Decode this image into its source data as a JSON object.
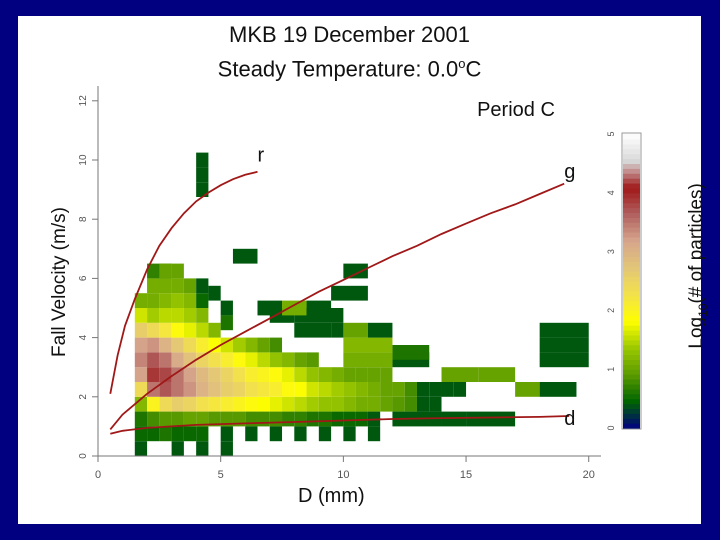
{
  "slide": {
    "title_line1": "MKB 19 December 2001",
    "title_line2_prefix": "Steady Temperature:  0.0",
    "title_line2_sup": "o",
    "title_line2_suffix": "C"
  },
  "chart_data": {
    "type": "heatmap",
    "panel_label": "Period C",
    "xlabel": "D (mm)",
    "ylabel": "Fall Velocity (m/s)",
    "colorbar_label_prefix": "Log",
    "colorbar_label_sub": "10",
    "colorbar_label_suffix": "(# of particles)",
    "xlim": [
      0,
      20.5
    ],
    "ylim": [
      0,
      12.5
    ],
    "x_ticks": [
      0,
      5,
      10,
      15,
      20
    ],
    "y_ticks": [
      0,
      2,
      4,
      6,
      8,
      10,
      12
    ],
    "colorbar_ticks": [
      0,
      1,
      2,
      3,
      4,
      5
    ],
    "colorbar_range": [
      0,
      5
    ],
    "colorbar_colors": [
      "#000080",
      "#006400",
      "#5a9a00",
      "#9bc800",
      "#ffff00",
      "#f3e24a",
      "#e3c678",
      "#d6a68c",
      "#b06060",
      "#a01818",
      "#d8d8d8",
      "#ffffff"
    ],
    "cells": [
      [
        1.5,
        1.75,
        0.5,
        1.2
      ],
      [
        1.5,
        2.25,
        0.5,
        2.4
      ],
      [
        1.5,
        2.75,
        0.5,
        3.2
      ],
      [
        1.5,
        3.25,
        0.5,
        3.4
      ],
      [
        1.5,
        3.75,
        0.5,
        3.2
      ],
      [
        1.5,
        4.25,
        0.5,
        2.6
      ],
      [
        1.5,
        4.75,
        0.5,
        1.6
      ],
      [
        1.5,
        5.25,
        0.5,
        1.1
      ],
      [
        2.0,
        1.75,
        0.5,
        2.0
      ],
      [
        2.0,
        2.25,
        0.5,
        3.5
      ],
      [
        2.0,
        2.75,
        0.5,
        3.9
      ],
      [
        2.0,
        3.25,
        0.5,
        3.7
      ],
      [
        2.0,
        3.75,
        0.5,
        3.3
      ],
      [
        2.0,
        4.25,
        0.5,
        2.4
      ],
      [
        2.0,
        4.75,
        0.5,
        1.4
      ],
      [
        2.0,
        5.25,
        0.5,
        1.1
      ],
      [
        2.5,
        1.75,
        0.5,
        2.4
      ],
      [
        2.5,
        2.25,
        0.5,
        3.7
      ],
      [
        2.5,
        2.75,
        0.5,
        3.8
      ],
      [
        2.5,
        3.25,
        0.5,
        3.5
      ],
      [
        2.5,
        3.75,
        0.5,
        3.0
      ],
      [
        2.5,
        4.25,
        0.5,
        2.2
      ],
      [
        2.5,
        4.75,
        0.5,
        1.5
      ],
      [
        2.5,
        5.25,
        0.5,
        1.2
      ],
      [
        3.0,
        1.75,
        0.5,
        2.6
      ],
      [
        3.0,
        2.25,
        0.5,
        3.5
      ],
      [
        3.0,
        2.75,
        0.5,
        3.5
      ],
      [
        3.0,
        3.25,
        0.5,
        3.1
      ],
      [
        3.0,
        3.75,
        0.5,
        2.7
      ],
      [
        3.0,
        4.25,
        0.5,
        1.9
      ],
      [
        3.0,
        4.75,
        0.5,
        1.5
      ],
      [
        3.0,
        5.25,
        0.5,
        1.3
      ],
      [
        3.0,
        5.75,
        0.5,
        1.1
      ],
      [
        3.5,
        1.75,
        0.5,
        2.5
      ],
      [
        3.5,
        2.25,
        0.5,
        3.3
      ],
      [
        3.5,
        2.75,
        0.5,
        3.2
      ],
      [
        3.5,
        3.25,
        0.5,
        2.8
      ],
      [
        3.5,
        3.75,
        0.5,
        2.4
      ],
      [
        3.5,
        4.25,
        0.5,
        1.7
      ],
      [
        3.5,
        4.75,
        0.5,
        1.4
      ],
      [
        3.5,
        5.25,
        0.5,
        1.2
      ],
      [
        3.5,
        5.75,
        0.5,
        1.0
      ],
      [
        4.0,
        1.75,
        0.5,
        2.3
      ],
      [
        4.0,
        2.25,
        0.5,
        3.0
      ],
      [
        4.0,
        2.75,
        0.5,
        2.9
      ],
      [
        4.0,
        3.25,
        0.5,
        2.5
      ],
      [
        4.0,
        3.75,
        0.5,
        2.1
      ],
      [
        4.0,
        4.25,
        0.5,
        1.5
      ],
      [
        4.0,
        4.75,
        0.5,
        1.2
      ],
      [
        4.0,
        5.25,
        0.5,
        0.5
      ],
      [
        4.0,
        5.75,
        0.5,
        0.4
      ],
      [
        4.5,
        1.75,
        0.5,
        2.2
      ],
      [
        4.5,
        2.25,
        0.5,
        2.8
      ],
      [
        4.5,
        2.75,
        0.5,
        2.7
      ],
      [
        4.5,
        3.25,
        0.5,
        2.3
      ],
      [
        4.5,
        3.75,
        0.5,
        1.8
      ],
      [
        4.5,
        4.25,
        0.5,
        1.2
      ],
      [
        5.0,
        1.75,
        0.5,
        2.1
      ],
      [
        5.0,
        2.25,
        0.5,
        2.6
      ],
      [
        5.0,
        2.75,
        0.5,
        2.5
      ],
      [
        5.0,
        3.25,
        0.5,
        2.1
      ],
      [
        5.0,
        3.75,
        0.5,
        1.6
      ],
      [
        5.5,
        1.75,
        0.5,
        2.0
      ],
      [
        5.5,
        2.25,
        0.5,
        2.5
      ],
      [
        5.5,
        2.75,
        0.5,
        2.3
      ],
      [
        5.5,
        3.25,
        0.5,
        1.9
      ],
      [
        5.5,
        3.75,
        0.5,
        1.4
      ],
      [
        6.0,
        1.75,
        0.5,
        1.9
      ],
      [
        6.0,
        2.25,
        0.5,
        2.3
      ],
      [
        6.0,
        2.75,
        0.5,
        2.1
      ],
      [
        6.0,
        3.25,
        0.5,
        1.7
      ],
      [
        6.0,
        3.75,
        0.5,
        1.2
      ],
      [
        6.5,
        1.75,
        0.5,
        1.8
      ],
      [
        6.5,
        2.25,
        0.5,
        2.2
      ],
      [
        6.5,
        2.75,
        0.5,
        2.0
      ],
      [
        6.5,
        3.25,
        0.5,
        1.5
      ],
      [
        6.5,
        3.75,
        0.5,
        1.0
      ],
      [
        7.0,
        1.75,
        0.5,
        1.7
      ],
      [
        7.0,
        2.25,
        0.5,
        2.1
      ],
      [
        7.0,
        2.75,
        0.5,
        1.9
      ],
      [
        7.0,
        3.25,
        0.5,
        1.3
      ],
      [
        7.0,
        3.75,
        0.5,
        0.8
      ],
      [
        7.5,
        1.75,
        0.5,
        1.6
      ],
      [
        7.5,
        2.25,
        0.5,
        1.9
      ],
      [
        7.5,
        2.75,
        0.5,
        1.7
      ],
      [
        7.5,
        3.25,
        0.5,
        1.2
      ],
      [
        8.0,
        1.75,
        0.5,
        1.5
      ],
      [
        8.0,
        2.25,
        0.5,
        1.8
      ],
      [
        8.0,
        2.75,
        0.5,
        1.5
      ],
      [
        8.0,
        3.25,
        0.5,
        1.0
      ],
      [
        8.5,
        1.75,
        0.5,
        1.4
      ],
      [
        8.5,
        2.25,
        0.5,
        1.6
      ],
      [
        8.5,
        2.75,
        0.5,
        1.3
      ],
      [
        8.5,
        3.25,
        0.5,
        0.9
      ],
      [
        9.0,
        1.75,
        0.5,
        1.3
      ],
      [
        9.0,
        2.25,
        0.5,
        1.5
      ],
      [
        9.0,
        2.75,
        0.5,
        1.2
      ],
      [
        9.5,
        1.75,
        0.5,
        1.3
      ],
      [
        9.5,
        2.25,
        0.5,
        1.4
      ],
      [
        9.5,
        2.75,
        0.5,
        1.1
      ],
      [
        10.0,
        1.75,
        0.5,
        1.2
      ],
      [
        10.0,
        2.25,
        0.5,
        1.3
      ],
      [
        10.0,
        2.75,
        0.5,
        1.0
      ],
      [
        10.5,
        1.75,
        0.5,
        1.1
      ],
      [
        10.5,
        2.25,
        0.5,
        1.2
      ],
      [
        10.5,
        2.75,
        0.5,
        1.0
      ],
      [
        11.0,
        1.75,
        0.5,
        1.1
      ],
      [
        11.0,
        2.25,
        0.5,
        1.1
      ],
      [
        11.0,
        2.75,
        0.5,
        1.0
      ],
      [
        11.5,
        1.75,
        0.5,
        1.0
      ],
      [
        11.5,
        2.25,
        0.5,
        1.0
      ],
      [
        11.5,
        2.75,
        0.5,
        1.0
      ],
      [
        12.0,
        1.75,
        0.5,
        0.9
      ],
      [
        12.0,
        2.25,
        0.5,
        1.0
      ],
      [
        12.5,
        1.75,
        0.5,
        0.8
      ],
      [
        12.5,
        2.25,
        0.5,
        0.8
      ],
      [
        13.0,
        1.75,
        0.5,
        0.4
      ],
      [
        13.0,
        2.25,
        0.5,
        0.4
      ],
      [
        13.5,
        1.75,
        0.5,
        0.4
      ],
      [
        13.5,
        2.25,
        0.5,
        0.4
      ],
      [
        14.0,
        2.25,
        0.5,
        0.4
      ],
      [
        14.5,
        2.25,
        0.5,
        0.4
      ],
      [
        14.0,
        2.75,
        1.5,
        1.0
      ],
      [
        15.5,
        2.75,
        1.5,
        1.0
      ],
      [
        17.0,
        2.25,
        1.0,
        1.0
      ],
      [
        18.0,
        2.25,
        1.5,
        0.4
      ],
      [
        12.0,
        3.25,
        1.5,
        0.4
      ],
      [
        12.0,
        3.5,
        1.5,
        0.6
      ],
      [
        18.0,
        3.25,
        2.0,
        0.4
      ],
      [
        18.0,
        3.75,
        2.0,
        0.4
      ],
      [
        18.0,
        4.25,
        2.0,
        0.4
      ],
      [
        10.0,
        3.25,
        2.0,
        1.1
      ],
      [
        10.0,
        3.75,
        2.0,
        1.2
      ],
      [
        10.0,
        4.25,
        1.0,
        1.0
      ],
      [
        11.0,
        4.25,
        1.0,
        0.4
      ],
      [
        8.0,
        4.25,
        1.5,
        0.4
      ],
      [
        9.5,
        4.25,
        0.5,
        0.4
      ],
      [
        7.0,
        4.75,
        1.0,
        0.4
      ],
      [
        8.0,
        4.75,
        2.0,
        0.4
      ],
      [
        2.0,
        5.75,
        1.0,
        1.1
      ],
      [
        2.0,
        6.25,
        1.0,
        0.7
      ],
      [
        4.5,
        5.5,
        0.5,
        0.4
      ],
      [
        5.0,
        5.0,
        0.5,
        0.4
      ],
      [
        5.0,
        4.5,
        0.5,
        0.6
      ],
      [
        6.5,
        5.0,
        1.0,
        0.4
      ],
      [
        7.5,
        5.0,
        1.0,
        1.1
      ],
      [
        8.5,
        5.0,
        1.0,
        0.4
      ],
      [
        9.5,
        5.5,
        1.5,
        0.4
      ],
      [
        10.0,
        6.25,
        1.0,
        0.4
      ],
      [
        2.5,
        6.25,
        0.5,
        1.0
      ],
      [
        3.0,
        6.25,
        0.5,
        1.0
      ],
      [
        5.5,
        6.75,
        1.0,
        0.4
      ],
      [
        4.0,
        9.0,
        0.5,
        0.4
      ],
      [
        4.0,
        9.5,
        0.5,
        0.4
      ],
      [
        4.0,
        10.0,
        0.5,
        0.4
      ],
      [
        1.5,
        0.25,
        0.5,
        0.4
      ],
      [
        3.0,
        0.25,
        0.5,
        0.4
      ],
      [
        4.0,
        0.25,
        0.5,
        0.4
      ],
      [
        5.0,
        0.25,
        0.5,
        0.4
      ],
      [
        1.5,
        1.25,
        0.5,
        0.6
      ],
      [
        2.0,
        1.25,
        0.5,
        0.8
      ],
      [
        2.5,
        1.25,
        0.5,
        0.9
      ],
      [
        3.0,
        1.25,
        0.5,
        0.9
      ],
      [
        3.5,
        1.25,
        0.5,
        1.0
      ],
      [
        4.0,
        1.25,
        0.5,
        1.0
      ],
      [
        4.5,
        1.25,
        0.5,
        0.9
      ],
      [
        5.0,
        1.25,
        0.5,
        0.9
      ],
      [
        5.5,
        1.25,
        0.5,
        0.9
      ],
      [
        6.0,
        1.25,
        0.5,
        0.8
      ],
      [
        6.5,
        1.25,
        0.5,
        0.8
      ],
      [
        7.0,
        1.25,
        0.5,
        0.8
      ],
      [
        7.5,
        1.25,
        0.5,
        0.7
      ],
      [
        8.0,
        1.25,
        0.5,
        0.7
      ],
      [
        8.5,
        1.25,
        0.5,
        0.6
      ],
      [
        9.0,
        1.25,
        0.5,
        0.6
      ],
      [
        9.5,
        1.25,
        0.5,
        0.5
      ],
      [
        10.0,
        1.25,
        0.5,
        0.5
      ],
      [
        10.5,
        1.25,
        0.5,
        0.5
      ],
      [
        11.0,
        1.25,
        0.5,
        0.4
      ],
      [
        12.0,
        1.25,
        2.0,
        0.4
      ],
      [
        14.0,
        1.25,
        1.0,
        0.4
      ],
      [
        15.0,
        1.25,
        2.0,
        0.4
      ],
      [
        1.5,
        0.75,
        0.5,
        0.5
      ],
      [
        2.0,
        0.75,
        0.5,
        0.5
      ],
      [
        2.5,
        0.75,
        0.5,
        0.6
      ],
      [
        3.0,
        0.75,
        0.5,
        0.5
      ],
      [
        3.5,
        0.75,
        0.5,
        0.5
      ],
      [
        4.0,
        0.75,
        0.5,
        0.5
      ],
      [
        5.0,
        0.75,
        0.5,
        0.4
      ],
      [
        6.0,
        0.75,
        0.5,
        0.4
      ],
      [
        7.0,
        0.75,
        0.5,
        0.4
      ],
      [
        8.0,
        0.75,
        0.5,
        0.4
      ],
      [
        9.0,
        0.75,
        0.5,
        0.4
      ],
      [
        10.0,
        0.75,
        0.5,
        0.4
      ],
      [
        11.0,
        0.75,
        0.5,
        0.4
      ]
    ],
    "curves": [
      {
        "label": "r",
        "points": [
          [
            0.5,
            2.1
          ],
          [
            0.8,
            3.4
          ],
          [
            1.1,
            4.4
          ],
          [
            1.5,
            5.3
          ],
          [
            2.0,
            6.3
          ],
          [
            2.5,
            7.1
          ],
          [
            3.0,
            7.7
          ],
          [
            3.5,
            8.2
          ],
          [
            4.0,
            8.6
          ],
          [
            4.5,
            8.9
          ],
          [
            5.0,
            9.15
          ],
          [
            5.5,
            9.35
          ],
          [
            6.0,
            9.5
          ],
          [
            6.5,
            9.6
          ]
        ]
      },
      {
        "label": "g",
        "points": [
          [
            0.5,
            0.9
          ],
          [
            1.0,
            1.4
          ],
          [
            2.0,
            2.1
          ],
          [
            3.0,
            2.7
          ],
          [
            4.0,
            3.25
          ],
          [
            5.0,
            3.75
          ],
          [
            6.0,
            4.2
          ],
          [
            7.0,
            4.65
          ],
          [
            8.0,
            5.1
          ],
          [
            9.0,
            5.55
          ],
          [
            10.0,
            5.95
          ],
          [
            11.0,
            6.35
          ],
          [
            12.0,
            6.75
          ],
          [
            13.0,
            7.1
          ],
          [
            14.0,
            7.5
          ],
          [
            15.0,
            7.85
          ],
          [
            16.0,
            8.2
          ],
          [
            17.0,
            8.5
          ],
          [
            18.0,
            8.85
          ],
          [
            19.0,
            9.2
          ]
        ]
      },
      {
        "label": "d",
        "points": [
          [
            0.5,
            0.75
          ],
          [
            1.0,
            0.85
          ],
          [
            2.0,
            0.95
          ],
          [
            3.0,
            1.0
          ],
          [
            4.0,
            1.05
          ],
          [
            6.0,
            1.1
          ],
          [
            8.0,
            1.15
          ],
          [
            10.0,
            1.2
          ],
          [
            12.0,
            1.25
          ],
          [
            14.0,
            1.28
          ],
          [
            16.0,
            1.3
          ],
          [
            18.0,
            1.32
          ],
          [
            19.2,
            1.35
          ]
        ]
      }
    ],
    "curve_color": "#a01818"
  }
}
